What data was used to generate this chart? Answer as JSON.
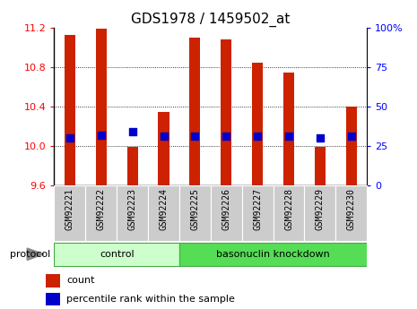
{
  "title": "GDS1978 / 1459502_at",
  "samples": [
    "GSM92221",
    "GSM92222",
    "GSM92223",
    "GSM92224",
    "GSM92225",
    "GSM92226",
    "GSM92227",
    "GSM92228",
    "GSM92229",
    "GSM92230"
  ],
  "count_values": [
    11.13,
    11.19,
    9.99,
    10.35,
    11.1,
    11.08,
    10.85,
    10.75,
    9.99,
    10.4
  ],
  "percentile_values": [
    30,
    32,
    34,
    31,
    31,
    31,
    31,
    31,
    30,
    31
  ],
  "ylim_left": [
    9.6,
    11.2
  ],
  "ylim_right": [
    0,
    100
  ],
  "yticks_left": [
    9.6,
    10.0,
    10.4,
    10.8,
    11.2
  ],
  "yticks_right": [
    0,
    25,
    50,
    75,
    100
  ],
  "ytick_labels_right": [
    "0",
    "25",
    "50",
    "75",
    "100%"
  ],
  "bar_color": "#cc2200",
  "dot_color": "#0000cc",
  "background_color": "#ffffff",
  "control_indices": [
    0,
    1,
    2,
    3
  ],
  "knockdown_indices": [
    4,
    5,
    6,
    7,
    8,
    9
  ],
  "control_label": "control",
  "knockdown_label": "basonuclin knockdown",
  "protocol_label": "protocol",
  "legend_count": "count",
  "legend_percentile": "percentile rank within the sample",
  "control_bg": "#ccffcc",
  "knockdown_bg": "#55dd55",
  "xticklabel_bg": "#cccccc",
  "bar_width": 0.35,
  "dot_size": 30,
  "title_fontsize": 11,
  "tick_fontsize": 8,
  "label_fontsize": 8,
  "xtick_fontsize": 7
}
